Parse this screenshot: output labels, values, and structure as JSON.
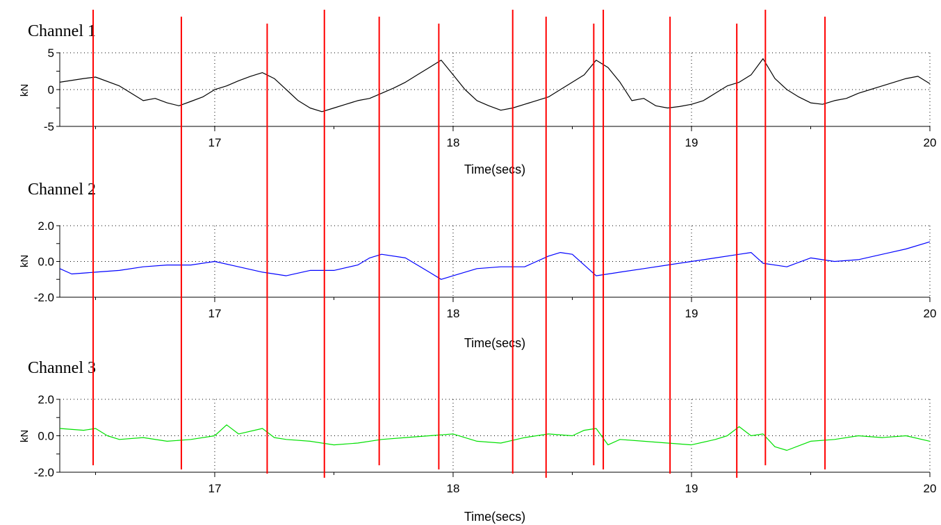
{
  "chart_data": [
    {
      "type": "line",
      "title": "Channel 1",
      "xlabel": "Time(secs)",
      "ylabel": "kN",
      "xlim": [
        16.35,
        20.0
      ],
      "ylim": [
        -5,
        5
      ],
      "xticks": [
        "17",
        "18",
        "19",
        "20"
      ],
      "yticks": [
        "5",
        "0",
        "-5"
      ],
      "grid": true,
      "series": [
        {
          "color": "#000000",
          "x": [
            16.35,
            16.45,
            16.5,
            16.6,
            16.7,
            16.75,
            16.8,
            16.85,
            16.9,
            16.95,
            17.0,
            17.05,
            17.1,
            17.15,
            17.2,
            17.25,
            17.3,
            17.35,
            17.4,
            17.45,
            17.5,
            17.55,
            17.6,
            17.65,
            17.7,
            17.75,
            17.8,
            17.85,
            17.9,
            17.95,
            18.0,
            18.05,
            18.1,
            18.15,
            18.2,
            18.25,
            18.3,
            18.35,
            18.4,
            18.45,
            18.5,
            18.55,
            18.6,
            18.65,
            18.7,
            18.75,
            18.8,
            18.85,
            18.9,
            18.95,
            19.0,
            19.05,
            19.1,
            19.15,
            19.2,
            19.25,
            19.3,
            19.35,
            19.4,
            19.45,
            19.5,
            19.55,
            19.6,
            19.65,
            19.7,
            19.75,
            19.8,
            19.85,
            19.9,
            19.95,
            20.0
          ],
          "y": [
            1.0,
            1.5,
            1.7,
            0.5,
            -1.5,
            -1.2,
            -1.8,
            -2.2,
            -1.6,
            -1.0,
            0.0,
            0.5,
            1.2,
            1.8,
            2.3,
            1.5,
            0.0,
            -1.5,
            -2.5,
            -3.0,
            -2.5,
            -2.0,
            -1.5,
            -1.2,
            -0.5,
            0.2,
            1.0,
            2.0,
            3.0,
            4.0,
            2.0,
            0.0,
            -1.5,
            -2.2,
            -2.8,
            -2.5,
            -2.0,
            -1.5,
            -1.0,
            0.0,
            1.0,
            2.0,
            4.0,
            3.0,
            1.0,
            -1.5,
            -1.2,
            -2.2,
            -2.5,
            -2.3,
            -2.0,
            -1.5,
            -0.5,
            0.5,
            1.0,
            2.0,
            4.2,
            1.5,
            0.0,
            -1.0,
            -1.8,
            -2.0,
            -1.5,
            -1.2,
            -0.5,
            0.0,
            0.5,
            1.0,
            1.5,
            1.8,
            0.8
          ]
        }
      ]
    },
    {
      "type": "line",
      "title": "Channel 2",
      "xlabel": "Time(secs)",
      "ylabel": "kN",
      "xlim": [
        16.35,
        20.0
      ],
      "ylim": [
        -2.0,
        2.0
      ],
      "xticks": [
        "17",
        "18",
        "19",
        "20"
      ],
      "yticks": [
        "2.0",
        "0.0",
        "-2.0"
      ],
      "grid": true,
      "series": [
        {
          "color": "#0000ff",
          "x": [
            16.35,
            16.4,
            16.5,
            16.6,
            16.7,
            16.8,
            16.9,
            17.0,
            17.1,
            17.2,
            17.3,
            17.4,
            17.5,
            17.6,
            17.65,
            17.7,
            17.8,
            17.9,
            17.95,
            18.0,
            18.1,
            18.2,
            18.3,
            18.4,
            18.45,
            18.5,
            18.55,
            18.6,
            18.7,
            18.8,
            18.9,
            19.0,
            19.1,
            19.2,
            19.25,
            19.3,
            19.4,
            19.5,
            19.6,
            19.7,
            19.8,
            19.9,
            20.0
          ],
          "y": [
            -0.4,
            -0.7,
            -0.6,
            -0.5,
            -0.3,
            -0.2,
            -0.2,
            0.0,
            -0.3,
            -0.6,
            -0.8,
            -0.5,
            -0.5,
            -0.2,
            0.2,
            0.4,
            0.2,
            -0.6,
            -1.0,
            -0.8,
            -0.4,
            -0.3,
            -0.3,
            0.3,
            0.5,
            0.4,
            -0.2,
            -0.8,
            -0.6,
            -0.4,
            -0.2,
            0.0,
            0.2,
            0.4,
            0.5,
            -0.1,
            -0.3,
            0.2,
            0.0,
            0.1,
            0.4,
            0.7,
            1.1
          ]
        }
      ]
    },
    {
      "type": "line",
      "title": "Channel 3",
      "xlabel": "Time(secs)",
      "ylabel": "kN",
      "xlim": [
        16.35,
        20.0
      ],
      "ylim": [
        -2.0,
        2.0
      ],
      "xticks": [
        "17",
        "18",
        "19",
        "20"
      ],
      "yticks": [
        "2.0",
        "0.0",
        "-2.0"
      ],
      "grid": true,
      "series": [
        {
          "color": "#00e000",
          "x": [
            16.35,
            16.45,
            16.5,
            16.55,
            16.6,
            16.7,
            16.8,
            16.9,
            17.0,
            17.05,
            17.1,
            17.2,
            17.25,
            17.3,
            17.4,
            17.5,
            17.6,
            17.7,
            17.8,
            17.9,
            18.0,
            18.1,
            18.2,
            18.3,
            18.4,
            18.5,
            18.55,
            18.6,
            18.65,
            18.7,
            18.8,
            18.9,
            19.0,
            19.1,
            19.15,
            19.2,
            19.25,
            19.3,
            19.35,
            19.4,
            19.5,
            19.6,
            19.7,
            19.8,
            19.9,
            20.0
          ],
          "y": [
            0.4,
            0.3,
            0.4,
            0.0,
            -0.2,
            -0.1,
            -0.3,
            -0.2,
            0.0,
            0.6,
            0.1,
            0.4,
            -0.1,
            -0.2,
            -0.3,
            -0.5,
            -0.4,
            -0.2,
            -0.1,
            0.0,
            0.1,
            -0.3,
            -0.4,
            -0.1,
            0.1,
            0.0,
            0.3,
            0.4,
            -0.5,
            -0.2,
            -0.3,
            -0.4,
            -0.5,
            -0.2,
            0.0,
            0.5,
            0.0,
            0.1,
            -0.6,
            -0.8,
            -0.3,
            -0.2,
            0.0,
            -0.1,
            0.0,
            -0.3
          ]
        }
      ]
    }
  ],
  "markers": {
    "color": "#ff0000",
    "x": [
      16.49,
      16.86,
      17.22,
      17.46,
      17.69,
      17.94,
      18.25,
      18.39,
      18.59,
      18.63,
      18.91,
      19.19,
      19.31,
      19.56
    ]
  }
}
